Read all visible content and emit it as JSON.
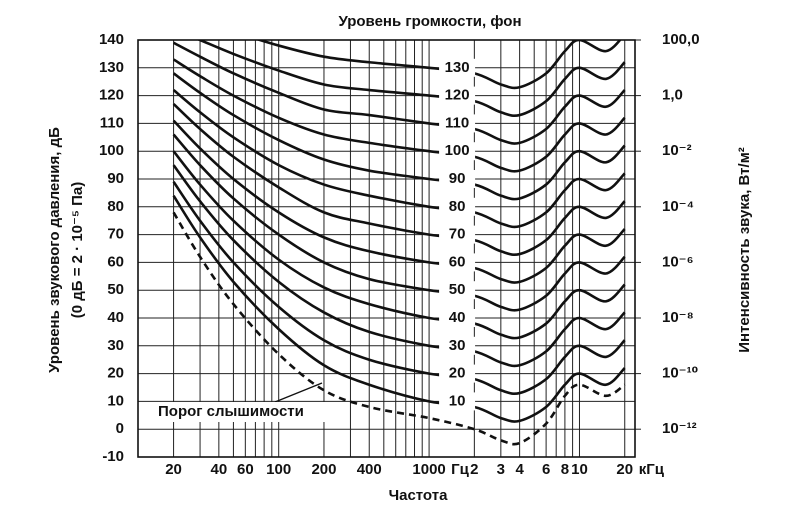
{
  "chart_data": {
    "type": "line",
    "title": "Уровень громкости, фон",
    "xlabel": "Частота",
    "ylabel": [
      "Уровень звукового давления, дБ",
      "(0 дБ = 2 · 10⁻⁵ Па)"
    ],
    "y2label": "Интенсивность звука, Вт/м²",
    "x_log": true,
    "xlim": [
      11.6,
      23400
    ],
    "xticks": [
      20,
      40,
      60,
      100,
      200,
      400,
      1000,
      {
        "value": 2000,
        "label": "2"
      },
      {
        "value": 3000,
        "label": "3"
      },
      {
        "value": 4000,
        "label": "4"
      },
      {
        "value": 6000,
        "label": "6"
      },
      {
        "value": 8000,
        "label": "8"
      },
      {
        "value": 10000,
        "label": "10"
      },
      {
        "value": 20000,
        "label": "20"
      }
    ],
    "x_unit_labels": [
      "Гц",
      "кГц"
    ],
    "xgrid_minor": [
      30,
      50,
      70,
      80,
      90,
      300,
      500,
      600,
      700,
      800,
      900,
      5000,
      7000,
      9000
    ],
    "ylim": [
      -10,
      140
    ],
    "yticks": [
      -10,
      0,
      10,
      20,
      30,
      40,
      50,
      60,
      70,
      80,
      90,
      100,
      110,
      120,
      130,
      140
    ],
    "y2_log": true,
    "y2lim": [
      1e-13,
      100
    ],
    "y2ticks": [
      {
        "value": 1e-12,
        "label": "10⁻¹²"
      },
      {
        "value": 1e-10,
        "label": "10⁻¹⁰"
      },
      {
        "value": 1e-08,
        "label": "10⁻⁸"
      },
      {
        "value": 1e-06,
        "label": "10⁻⁶"
      },
      {
        "value": 0.0001,
        "label": "10⁻⁴"
      },
      {
        "value": 0.01,
        "label": "10⁻²"
      },
      {
        "value": 1,
        "label": "1,0"
      },
      {
        "value": 100,
        "label": "100,0"
      }
    ],
    "grid": true,
    "x": [
      20,
      30,
      50,
      100,
      200,
      400,
      1000,
      2000,
      3000,
      4000,
      6000,
      8000,
      10000,
      15000,
      20000
    ],
    "series": [
      {
        "name": "Порог слышимости",
        "color": "#111",
        "dashed": true,
        "values": [
          78,
          62,
          45,
          27,
          14,
          8,
          4,
          0,
          -4,
          -5,
          2,
          12,
          16,
          12,
          16
        ]
      },
      {
        "name": "10",
        "color": "#111",
        "values": [
          84,
          69,
          53,
          36,
          23,
          16,
          10,
          8,
          4,
          3,
          8,
          16,
          20,
          16,
          22
        ]
      },
      {
        "name": "20",
        "color": "#111",
        "values": [
          89,
          75,
          60,
          44,
          32,
          25,
          20,
          18,
          14,
          13,
          18,
          26,
          30,
          26,
          32
        ]
      },
      {
        "name": "30",
        "color": "#111",
        "values": [
          95,
          82,
          68,
          53,
          42,
          35,
          30,
          28,
          24,
          23,
          28,
          36,
          40,
          36,
          42
        ]
      },
      {
        "name": "40",
        "color": "#111",
        "values": [
          100,
          88,
          75,
          61,
          51,
          45,
          40,
          38,
          34,
          33,
          38,
          46,
          50,
          46,
          52
        ]
      },
      {
        "name": "50",
        "color": "#111",
        "values": [
          106,
          95,
          83,
          70,
          60,
          54,
          50,
          48,
          44,
          43,
          48,
          56,
          60,
          56,
          62
        ]
      },
      {
        "name": "60",
        "color": "#111",
        "values": [
          111,
          101,
          90,
          78,
          69,
          64,
          60,
          58,
          54,
          53,
          58,
          66,
          70,
          66,
          72
        ]
      },
      {
        "name": "70",
        "color": "#111",
        "values": [
          117,
          108,
          98,
          87,
          78,
          74,
          70,
          68,
          64,
          63,
          68,
          76,
          80,
          76,
          82
        ]
      },
      {
        "name": "80",
        "color": "#111",
        "values": [
          122,
          114,
          105,
          95,
          88,
          84,
          80,
          78,
          74,
          73,
          78,
          86,
          90,
          86,
          92
        ]
      },
      {
        "name": "90",
        "color": "#111",
        "values": [
          128,
          121,
          113,
          104,
          97,
          93,
          90,
          88,
          84,
          83,
          88,
          96,
          100,
          96,
          102
        ]
      },
      {
        "name": "100",
        "color": "#111",
        "values": [
          133,
          127,
          120,
          112,
          106,
          103,
          100,
          98,
          94,
          93,
          98,
          106,
          110,
          106,
          112
        ]
      },
      {
        "name": "110",
        "color": "#111",
        "values": [
          139,
          134,
          128,
          121,
          115,
          113,
          110,
          108,
          104,
          103,
          108,
          116,
          120,
          116,
          122
        ]
      },
      {
        "name": "120",
        "color": "#111",
        "values": [
          144,
          140,
          135,
          129,
          124,
          122,
          120,
          118,
          114,
          113,
          118,
          126,
          130,
          126,
          132
        ]
      },
      {
        "name": "130",
        "color": "#111",
        "values": [
          150,
          147,
          143,
          138,
          134,
          132,
          130,
          128,
          124,
          123,
          128,
          136,
          140,
          136,
          142
        ]
      }
    ]
  }
}
